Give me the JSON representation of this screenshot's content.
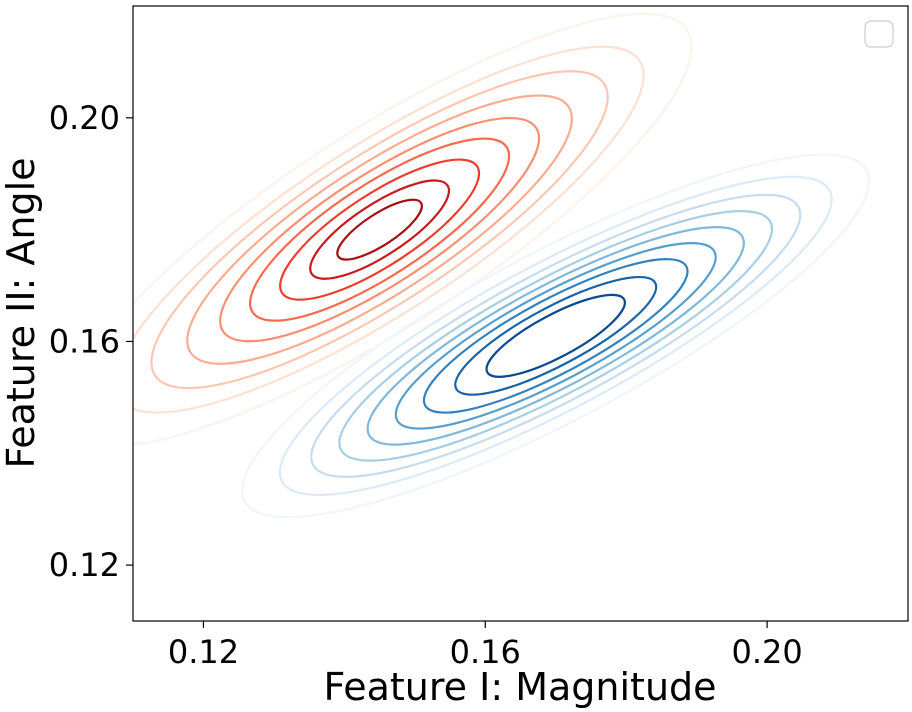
{
  "chart_data": {
    "type": "contour",
    "title": "",
    "xlabel": "Feature I: Magnitude",
    "ylabel": "Feature II: Angle",
    "xlim": [
      0.11,
      0.22
    ],
    "ylim": [
      0.11,
      0.22
    ],
    "xticks": [
      0.12,
      0.16,
      0.2
    ],
    "yticks": [
      0.12,
      0.16,
      0.2
    ],
    "xtick_labels": [
      "0.12",
      "0.16",
      "0.20"
    ],
    "ytick_labels": [
      "0.12",
      "0.16",
      "0.20"
    ],
    "grid": false,
    "legend": {
      "placement": "top-right",
      "entries": []
    },
    "series": [
      {
        "colormap": "Reds",
        "colors": [
          "#fff1eb",
          "#fee0d2",
          "#fcc7b0",
          "#fcab8f",
          "#fc8e6f",
          "#f96a4d",
          "#ee3c2f",
          "#c8191e",
          "#a50f15"
        ],
        "center": [
          0.145,
          0.18
        ],
        "angle_deg": -33,
        "levels": [
          {
            "rx": 0.052,
            "ry": 0.0175
          },
          {
            "rx": 0.044,
            "ry": 0.015
          },
          {
            "rx": 0.038,
            "ry": 0.0132
          },
          {
            "rx": 0.032,
            "ry": 0.0115
          },
          {
            "rx": 0.0265,
            "ry": 0.0098
          },
          {
            "rx": 0.0215,
            "ry": 0.0082
          },
          {
            "rx": 0.0165,
            "ry": 0.0064
          },
          {
            "rx": 0.0115,
            "ry": 0.0046
          },
          {
            "rx": 0.007,
            "ry": 0.0028
          }
        ]
      },
      {
        "colormap": "Blues",
        "colors": [
          "#eef5fc",
          "#dce9f6",
          "#c6dbef",
          "#a6cee4",
          "#7fb8da",
          "#559fcd",
          "#3282be",
          "#1864aa",
          "#0b4a8f"
        ],
        "center": [
          0.17,
          0.161
        ],
        "angle_deg": -28,
        "levels": [
          {
            "rx": 0.05,
            "ry": 0.015
          },
          {
            "rx": 0.044,
            "ry": 0.013
          },
          {
            "rx": 0.039,
            "ry": 0.0115
          },
          {
            "rx": 0.0345,
            "ry": 0.0102
          },
          {
            "rx": 0.03,
            "ry": 0.009
          },
          {
            "rx": 0.0255,
            "ry": 0.0078
          },
          {
            "rx": 0.021,
            "ry": 0.0066
          },
          {
            "rx": 0.016,
            "ry": 0.0052
          },
          {
            "rx": 0.011,
            "ry": 0.0038
          }
        ]
      }
    ]
  }
}
